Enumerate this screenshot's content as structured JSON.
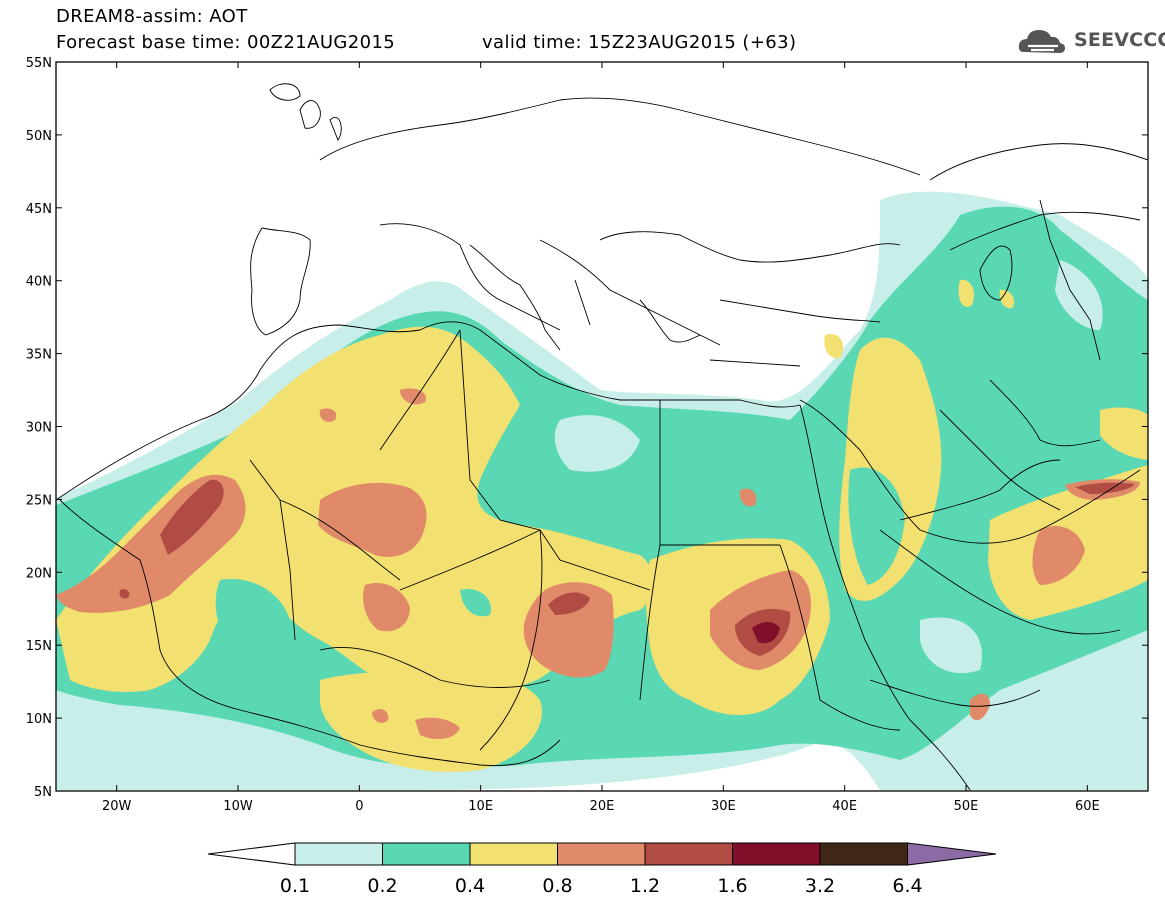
{
  "header": {
    "title": "DREAM8-assim: AOT",
    "base_time": "Forecast base time: 00Z21AUG2015",
    "valid_time": "valid time: 15Z23AUG2015 (+63)"
  },
  "logo": {
    "text": "SEEVCCC",
    "icon": "cloud-icon"
  },
  "map": {
    "lat_labels": [
      "55N",
      "50N",
      "45N",
      "40N",
      "35N",
      "30N",
      "25N",
      "20N",
      "15N",
      "10N",
      "5N"
    ],
    "lon_labels": [
      "20W",
      "10W",
      "0",
      "10E",
      "20E",
      "30E",
      "40E",
      "50E",
      "60E"
    ],
    "lon_range": [
      -25,
      65
    ],
    "lat_range": [
      5,
      55
    ]
  },
  "legend": {
    "levels": [
      "0.1",
      "0.2",
      "0.4",
      "0.8",
      "1.2",
      "1.6",
      "3.2",
      "6.4"
    ],
    "colors": [
      "#ffffff",
      "#c8eeea",
      "#5ad8b4",
      "#f2e070",
      "#e08a6a",
      "#b04c44",
      "#80102a",
      "#402616",
      "#8c6aa6"
    ]
  },
  "palette": {
    "c1": "#c8eeea",
    "c2": "#5ad8b4",
    "c3": "#f2e070",
    "c4": "#e08a6a",
    "c5": "#b04c44",
    "c6": "#80102a"
  }
}
